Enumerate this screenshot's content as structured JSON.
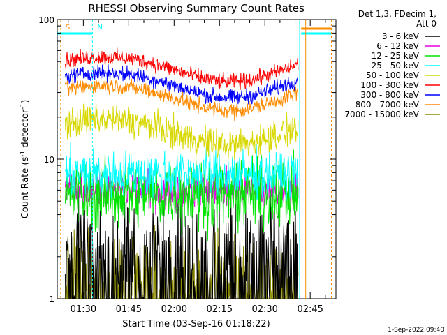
{
  "chart_data": {
    "type": "line",
    "title": "RHESSI Observing Summary Count Rates",
    "xlabel": "Start Time (03-Sep-16 01:18:22)",
    "ylabel": "Count Rate (s",
    "ylabel_exp": "-1",
    "ylabel_tail": " detector",
    "ylabel_close": ")",
    "yscale": "log",
    "ylim": [
      1,
      100
    ],
    "y_ticks": [
      {
        "value": 1,
        "label": "1"
      },
      {
        "value": 10,
        "label": "10"
      },
      {
        "value": 100,
        "label": "100"
      }
    ],
    "xlim_minutes": [
      81.37,
      173.5
    ],
    "x_ticks": [
      {
        "minute": 90,
        "label": "01:30"
      },
      {
        "minute": 105,
        "label": "01:45"
      },
      {
        "minute": 120,
        "label": "02:00"
      },
      {
        "minute": 135,
        "label": "02:15"
      },
      {
        "minute": 150,
        "label": "02:30"
      },
      {
        "minute": 165,
        "label": "02:45"
      }
    ],
    "data_range_minutes": [
      84,
      161
    ],
    "legend_header": [
      "Det 1,3, FDecim 1,",
      "Att 0"
    ],
    "series": [
      {
        "name": "3 - 6 keV",
        "color": "#000000",
        "level": 2.3,
        "noise": 0.35,
        "trend": "flat",
        "floor": 1.0
      },
      {
        "name": "6 - 12 keV",
        "color": "#e600e6",
        "level": 6.0,
        "noise": 0.12,
        "trend": "flat"
      },
      {
        "name": "12 - 25 keV",
        "color": "#00e600",
        "level": 5.6,
        "noise": 0.22,
        "trend": "flat"
      },
      {
        "name": "25 - 50 keV",
        "color": "#00ffff",
        "level": 7.8,
        "noise": 0.15,
        "trend": "flat"
      },
      {
        "name": "50 - 100 keV",
        "color": "#d8d800",
        "level": 17.0,
        "noise": 0.1,
        "trend": "bowl"
      },
      {
        "name": "100 - 300 keV",
        "color": "#ff0000",
        "level": 48.0,
        "noise": 0.05,
        "trend": "bowl"
      },
      {
        "name": "300 - 800 keV",
        "color": "#0000ff",
        "level": 37.0,
        "noise": 0.05,
        "trend": "bowl"
      },
      {
        "name": "800 - 7000 keV",
        "color": "#ff8c00",
        "level": 30.0,
        "noise": 0.05,
        "trend": "bowl"
      },
      {
        "name": "7000 - 15000 keV",
        "color": "#8b8b00",
        "level": 1.45,
        "noise": 0.3,
        "trend": "flat",
        "floor": 1.0
      }
    ],
    "markers": [
      {
        "label": "S",
        "color": "#ff8c00",
        "minute": 82.5
      },
      {
        "label": "N",
        "color": "#00ffff",
        "minute": 93.0
      }
    ],
    "footer_timestamp": "1-Sep-2022 09:40"
  }
}
